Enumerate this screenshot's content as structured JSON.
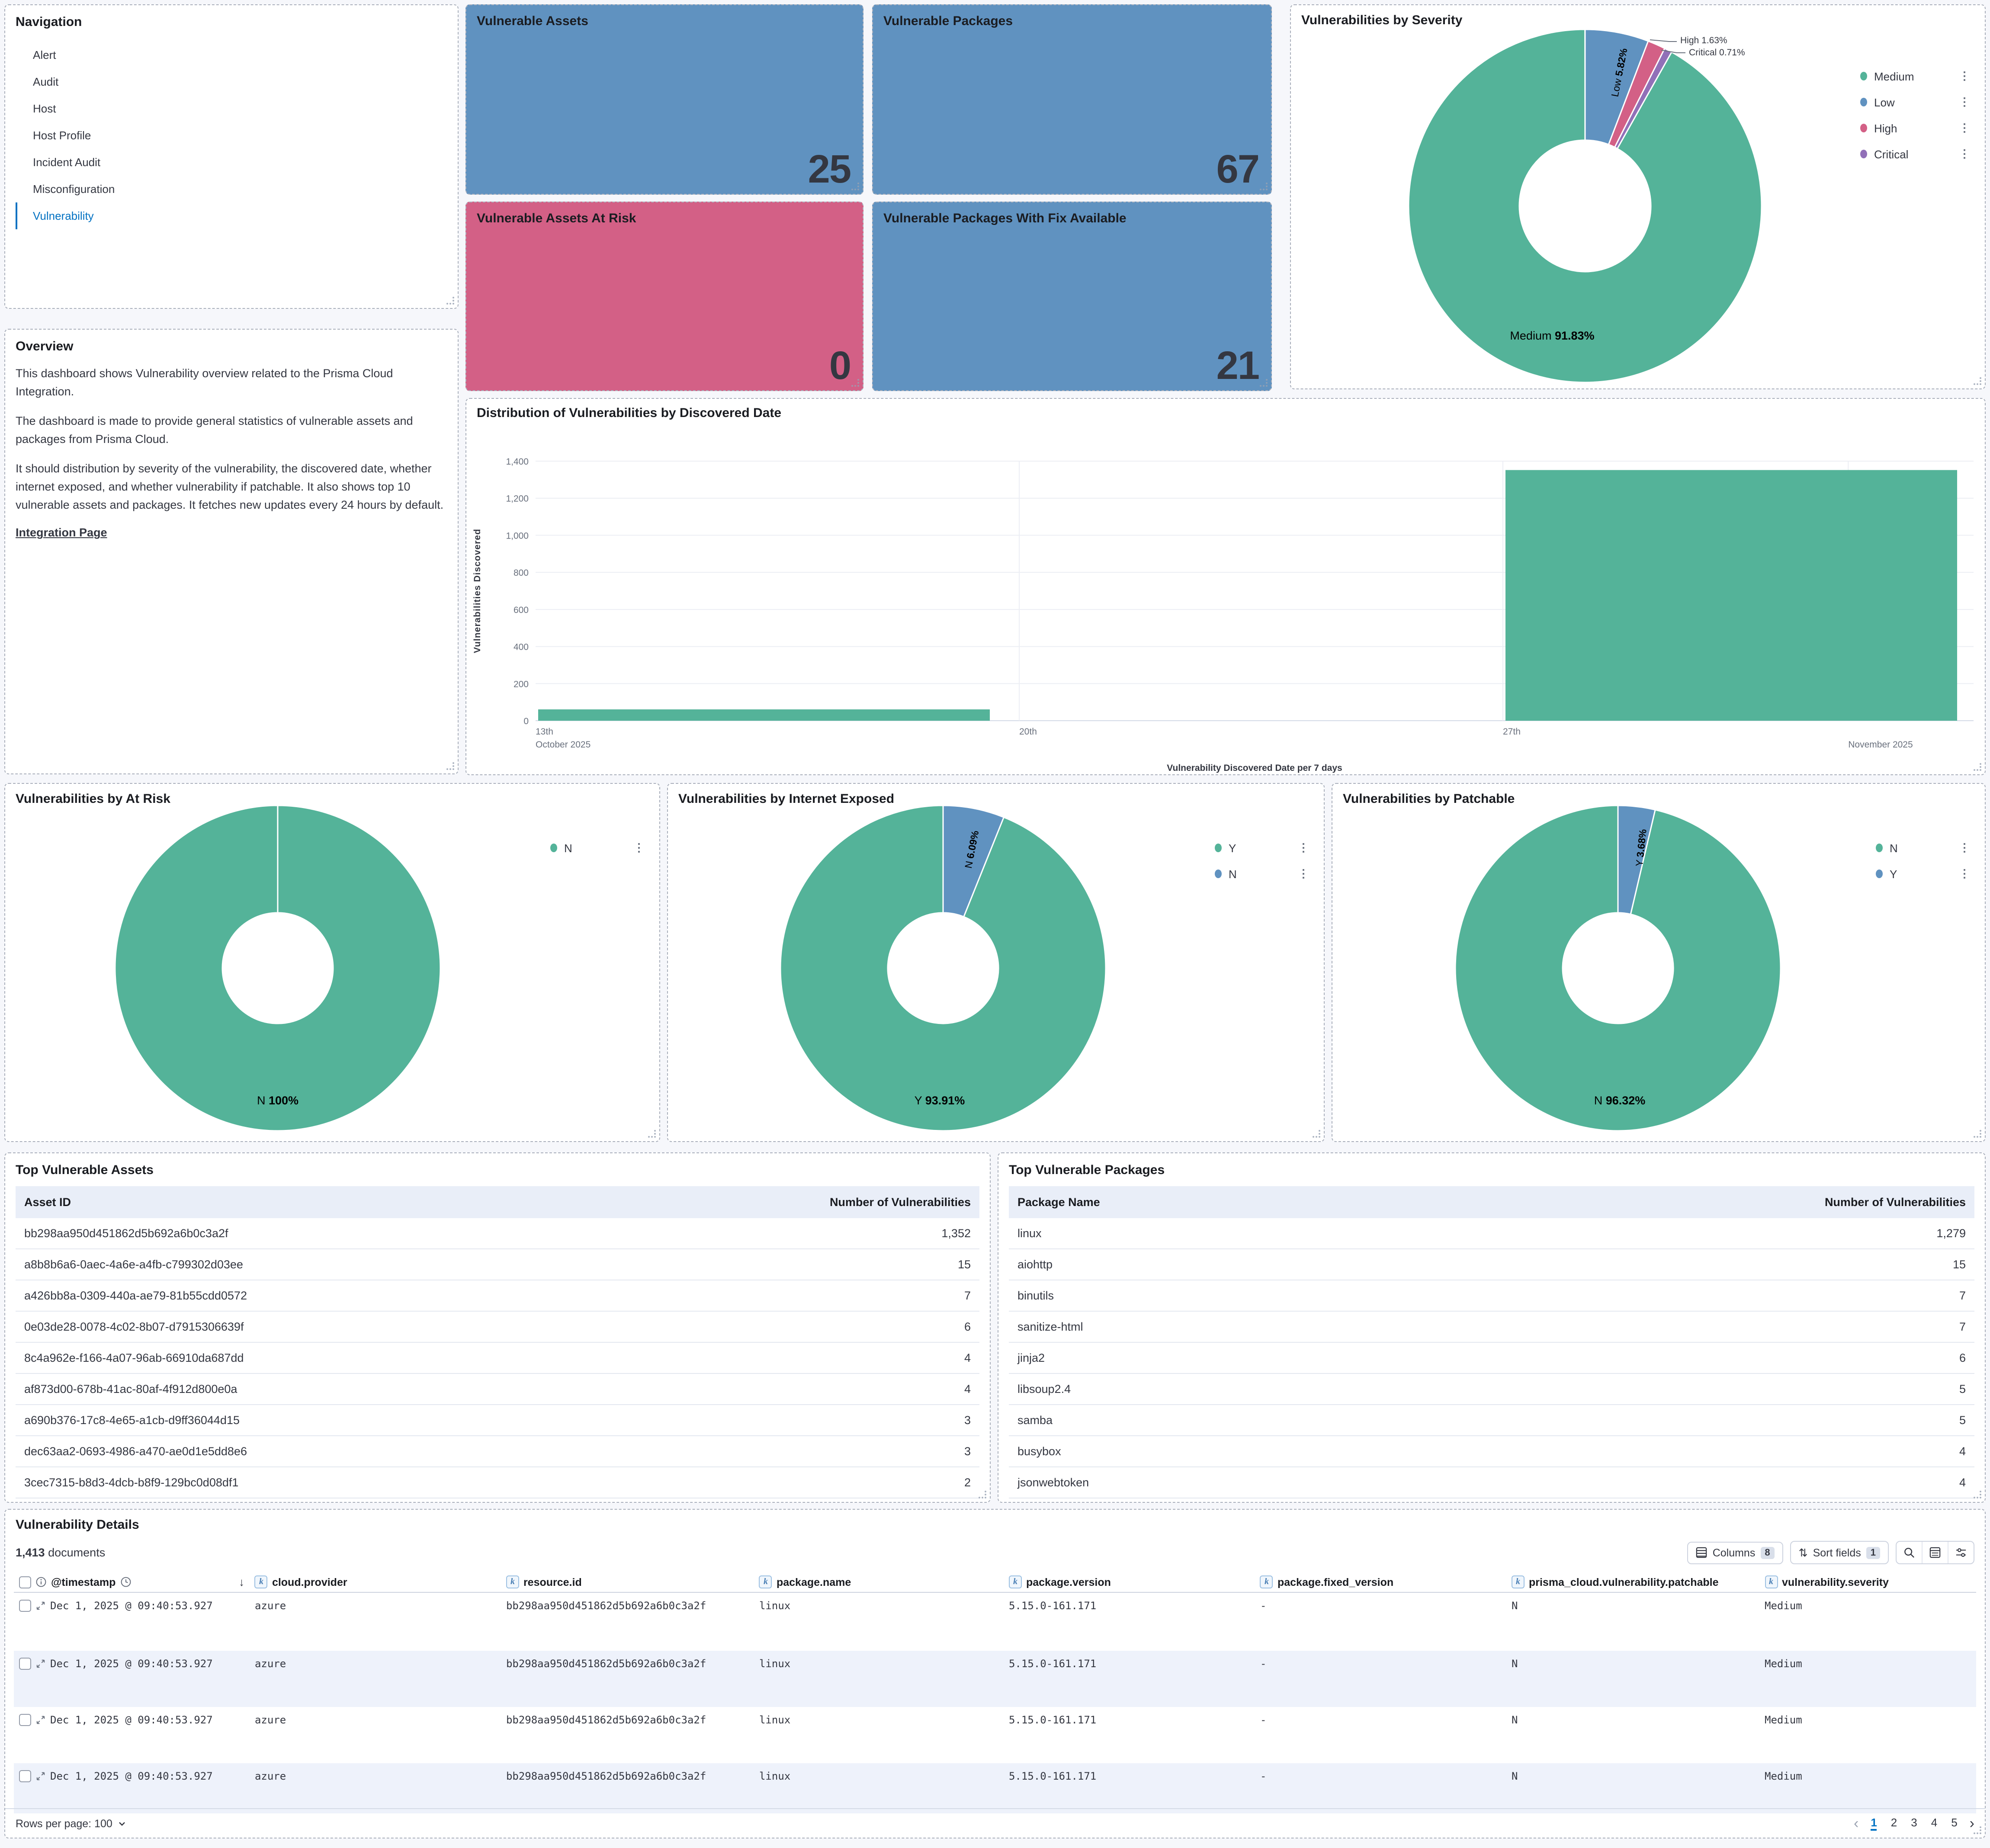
{
  "navigation": {
    "title": "Navigation",
    "items": [
      {
        "label": "Alert",
        "active": false
      },
      {
        "label": "Audit",
        "active": false
      },
      {
        "label": "Host",
        "active": false
      },
      {
        "label": "Host Profile",
        "active": false
      },
      {
        "label": "Incident Audit",
        "active": false
      },
      {
        "label": "Misconfiguration",
        "active": false
      },
      {
        "label": "Vulnerability",
        "active": true
      }
    ]
  },
  "tiles": [
    {
      "title": "Vulnerable Assets",
      "value": "25",
      "color": "#6092C0"
    },
    {
      "title": "Vulnerable Packages",
      "value": "67",
      "color": "#6092C0"
    },
    {
      "title": "Vulnerable Assets At Risk",
      "value": "0",
      "color": "#D36086"
    },
    {
      "title": "Vulnerable Packages With Fix Available",
      "value": "21",
      "color": "#6092C0"
    }
  ],
  "overview": {
    "title": "Overview",
    "paragraphs": [
      "This dashboard shows Vulnerability overview related to the Prisma Cloud Integration.",
      "The dashboard is made to provide general statistics of vulnerable assets and packages from Prisma Cloud.",
      "It should distribution by severity of the vulnerability, the discovered date, whether internet exposed, and whether vulnerability if patchable. It also shows top 10 vulnerable assets and packages. It fetches new updates every 24 hours by default."
    ],
    "link": "Integration Page"
  },
  "chart_data": [
    {
      "type": "bar",
      "title": "Distribution of Vulnerabilities by Discovered Date",
      "xlabel": "Vulnerability Discovered Date per 7 days",
      "ylabel": "Vulnerabilities Discovered",
      "ylim": [
        0,
        1400
      ],
      "ytick_labels": [
        "0",
        "200",
        "400",
        "600",
        "800",
        "1,000",
        "1,200",
        "1,400"
      ],
      "categories": [
        "2025-10-13",
        "2025-10-20",
        "2025-10-27",
        "2025-11-03"
      ],
      "values": [
        61,
        0,
        1352,
        0
      ],
      "bar_color": "#54B399",
      "grid": true,
      "xticks": [
        {
          "label": "13th",
          "slot": 0
        },
        {
          "label": "20th",
          "slot": 1
        },
        {
          "label": "27th",
          "slot": 2
        }
      ],
      "month_labels": [
        {
          "label": "October 2025",
          "slot": 0
        },
        {
          "label": "November 2025",
          "slot": 2.714
        }
      ]
    },
    {
      "type": "pie",
      "title": "Vulnerabilities by Severity",
      "slices": [
        {
          "label": "Low",
          "pct": 5.82,
          "color": "#6092C0"
        },
        {
          "label": "High",
          "pct": 1.63,
          "color": "#D36086"
        },
        {
          "label": "Critical",
          "pct": 0.71,
          "color": "#9170B8"
        },
        {
          "label": "Medium",
          "pct": 91.83,
          "color": "#54B399"
        }
      ],
      "legend": [
        {
          "label": "Medium",
          "color": "#54B399"
        },
        {
          "label": "Low",
          "color": "#6092C0"
        },
        {
          "label": "High",
          "color": "#D36086"
        },
        {
          "label": "Critical",
          "color": "#9170B8"
        }
      ],
      "big_label": {
        "name": "Medium",
        "pct": "91.83%"
      },
      "radial_label": {
        "name": "Low",
        "pct": "5.82%"
      },
      "callouts": [
        {
          "name": "High",
          "pct": "1.63%"
        },
        {
          "name": "Critical",
          "pct": "0.71%"
        }
      ]
    },
    {
      "type": "pie",
      "title": "Vulnerabilities by At Risk",
      "slices": [
        {
          "label": "N",
          "pct": 100,
          "color": "#54B399"
        }
      ],
      "legend": [
        {
          "label": "N",
          "color": "#54B399"
        }
      ],
      "big_label": {
        "name": "N",
        "pct": "100%"
      }
    },
    {
      "type": "pie",
      "title": "Vulnerabilities by Internet Exposed",
      "slices": [
        {
          "label": "N",
          "pct": 6.09,
          "color": "#6092C0"
        },
        {
          "label": "Y",
          "pct": 93.91,
          "color": "#54B399"
        }
      ],
      "legend": [
        {
          "label": "Y",
          "color": "#54B399"
        },
        {
          "label": "N",
          "color": "#6092C0"
        }
      ],
      "big_label": {
        "name": "Y",
        "pct": "93.91%"
      },
      "radial_label": {
        "name": "N",
        "pct": "6.09%"
      }
    },
    {
      "type": "pie",
      "title": "Vulnerabilities by Patchable",
      "slices": [
        {
          "label": "Y",
          "pct": 3.68,
          "color": "#6092C0"
        },
        {
          "label": "N",
          "pct": 96.32,
          "color": "#54B399"
        }
      ],
      "legend": [
        {
          "label": "N",
          "color": "#54B399"
        },
        {
          "label": "Y",
          "color": "#6092C0"
        }
      ],
      "big_label": {
        "name": "N",
        "pct": "96.32%"
      },
      "radial_label": {
        "name": "Y",
        "pct": "3.68%"
      }
    }
  ],
  "tables": [
    {
      "title": "Top Vulnerable Assets",
      "columns": [
        "Asset ID",
        "Number of Vulnerabilities"
      ],
      "rows": [
        [
          "bb298aa950d451862d5b692a6b0c3a2f",
          "1,352"
        ],
        [
          "a8b8b6a6-0aec-4a6e-a4fb-c799302d03ee",
          "15"
        ],
        [
          "a426bb8a-0309-440a-ae79-81b55cdd0572",
          "7"
        ],
        [
          "0e03de28-0078-4c02-8b07-d7915306639f",
          "6"
        ],
        [
          "8c4a962e-f166-4a07-96ab-66910da687dd",
          "4"
        ],
        [
          "af873d00-678b-41ac-80af-4f912d800e0a",
          "4"
        ],
        [
          "a690b376-17c8-4e65-a1cb-d9ff36044d15",
          "3"
        ],
        [
          "dec63aa2-0693-4986-a470-ae0d1e5dd8e6",
          "3"
        ],
        [
          "3cec7315-b8d3-4dcb-b8f9-129bc0d08df1",
          "2"
        ]
      ]
    },
    {
      "title": "Top Vulnerable Packages",
      "columns": [
        "Package Name",
        "Number of Vulnerabilities"
      ],
      "rows": [
        [
          "linux",
          "1,279"
        ],
        [
          "aiohttp",
          "15"
        ],
        [
          "binutils",
          "7"
        ],
        [
          "sanitize-html",
          "7"
        ],
        [
          "jinja2",
          "6"
        ],
        [
          "libsoup2.4",
          "5"
        ],
        [
          "samba",
          "5"
        ],
        [
          "busybox",
          "4"
        ],
        [
          "jsonwebtoken",
          "4"
        ]
      ]
    }
  ],
  "details": {
    "title": "Vulnerability Details",
    "doc_count": "1,413",
    "doc_label": "documents",
    "toolbar": {
      "columns_label": "Columns",
      "columns_count": "8",
      "sort_label": "Sort fields",
      "sort_count": "1"
    },
    "columns": [
      "@timestamp",
      "cloud.provider",
      "resource.id",
      "package.name",
      "package.version",
      "package.fixed_version",
      "prisma_cloud.vulnerability.patchable",
      "vulnerability.severity"
    ],
    "rows": [
      [
        "Dec 1, 2025 @ 09:40:53.927",
        "azure",
        "bb298aa950d451862d5b692a6b0c3a2f",
        "linux",
        "5.15.0-161.171",
        "-",
        "N",
        "Medium"
      ],
      [
        "Dec 1, 2025 @ 09:40:53.927",
        "azure",
        "bb298aa950d451862d5b692a6b0c3a2f",
        "linux",
        "5.15.0-161.171",
        "-",
        "N",
        "Medium"
      ],
      [
        "Dec 1, 2025 @ 09:40:53.927",
        "azure",
        "bb298aa950d451862d5b692a6b0c3a2f",
        "linux",
        "5.15.0-161.171",
        "-",
        "N",
        "Medium"
      ],
      [
        "Dec 1, 2025 @ 09:40:53.927",
        "azure",
        "bb298aa950d451862d5b692a6b0c3a2f",
        "linux",
        "5.15.0-161.171",
        "-",
        "N",
        "Medium"
      ]
    ],
    "footer": {
      "rows_per_page": "Rows per page: 100",
      "pages": [
        {
          "label": "1",
          "active": true
        },
        {
          "label": "2",
          "active": false
        },
        {
          "label": "3",
          "active": false
        },
        {
          "label": "4",
          "active": false
        },
        {
          "label": "5",
          "active": false
        }
      ]
    }
  }
}
